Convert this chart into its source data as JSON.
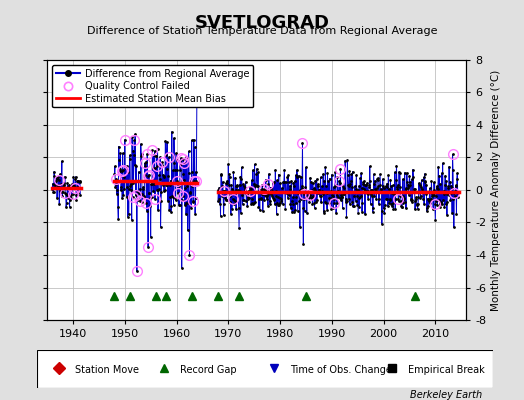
{
  "title": "SVETLOGRAD",
  "subtitle": "Difference of Station Temperature Data from Regional Average",
  "ylabel": "Monthly Temperature Anomaly Difference (°C)",
  "ylim": [
    -8,
    8
  ],
  "xlim": [
    1935,
    2016
  ],
  "xticks": [
    1940,
    1950,
    1960,
    1970,
    1980,
    1990,
    2000,
    2010
  ],
  "yticks": [
    -8,
    -6,
    -4,
    -2,
    0,
    2,
    4,
    6,
    8
  ],
  "bg_color": "#e0e0e0",
  "plot_bg_color": "#ffffff",
  "grid_color": "#c0c0c0",
  "main_line_color": "#0000cc",
  "main_dot_color": "#000000",
  "qc_circle_color": "#ff80ff",
  "bias_line_color": "#ff0000",
  "record_gap_color": "#006600",
  "time_obs_color": "#0000bb",
  "station_move_color": "#cc0000",
  "empirical_break_color": "#000000",
  "record_gap_years": [
    1948,
    1951,
    1956,
    1958,
    1963,
    1968,
    1972,
    1985,
    2006
  ],
  "segments": [
    {
      "start": 1936.0,
      "end": 1941.5,
      "bias": 0.15,
      "spread": 0.5,
      "qc_prob": 0.05
    },
    {
      "start": 1948.0,
      "end": 1956.0,
      "bias": 0.55,
      "spread": 1.3,
      "qc_prob": 0.12
    },
    {
      "start": 1956.0,
      "end": 1964.0,
      "bias": 0.45,
      "spread": 1.2,
      "qc_prob": 0.1
    },
    {
      "start": 1968.0,
      "end": 2014.5,
      "bias": -0.15,
      "spread": 0.75,
      "qc_prob": 0.03
    }
  ],
  "bias_lines": [
    {
      "start": 1936.0,
      "end": 1941.5,
      "bias": 0.15
    },
    {
      "start": 1948.0,
      "end": 1956.0,
      "bias": 0.55
    },
    {
      "start": 1956.0,
      "end": 1964.0,
      "bias": 0.45
    },
    {
      "start": 1968.0,
      "end": 2014.5,
      "bias": -0.15
    }
  ],
  "seed": 12345
}
